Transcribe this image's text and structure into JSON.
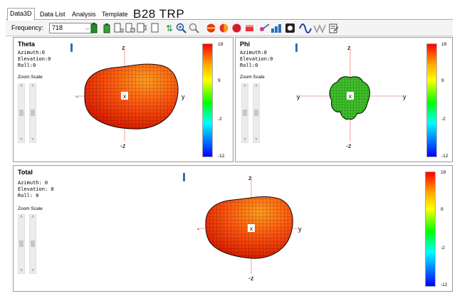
{
  "tabs": [
    {
      "label": "Data3D",
      "active": true
    },
    {
      "label": "Data List",
      "active": false
    },
    {
      "label": "Analysis",
      "active": false
    },
    {
      "label": "Template",
      "active": false
    }
  ],
  "overlay_title": "B28 TRP",
  "toolbar": {
    "frequency_label": "Frequency:",
    "frequency_value": "718",
    "icons": [
      "battery-green-icon",
      "battery-green-small-icon",
      "device-icon",
      "device-alt-icon",
      "device-right-icon",
      "refresh-icon",
      "zoom-in-icon",
      "zoom-out-icon",
      "color-ball-icon",
      "half-ball-icon",
      "red-ball-icon",
      "red-box-icon",
      "edit-icon",
      "chart-icon",
      "record-icon",
      "sine-wave-icon",
      "zigzag-icon",
      "export-icon"
    ]
  },
  "panels": {
    "theta": {
      "title": "Theta",
      "azimuth": "Azimuth:0",
      "elevation": "Elevation:0",
      "roll": "Roll:0",
      "zoom_label": "Zoom Scale",
      "axis": {
        "z": "z",
        "neg_z": "-z",
        "y": "y",
        "neg_y": "-",
        "x": "x"
      },
      "colorbar_ticks": [
        "19",
        "9",
        "-2",
        "-12"
      ]
    },
    "phi": {
      "title": "Phi",
      "azimuth": "Azimuth:0",
      "elevation": "Elevation:0",
      "roll": "Roll:0",
      "zoom_label": "Zoom Scale",
      "axis": {
        "z": "z",
        "neg_z": "-z",
        "y": "y",
        "neg_y": "-y",
        "x": "x"
      },
      "colorbar_ticks": [
        "19",
        "9",
        "-2",
        "-12"
      ]
    },
    "total": {
      "title": "Total",
      "azimuth": "Azimuth: 0",
      "elevation": "Elevation: 0",
      "roll": "Roll: 0",
      "zoom_label": "Zoom Scale",
      "axis": {
        "z": "z",
        "neg_z": "-z",
        "y": "y",
        "neg_y": "-",
        "x": "x"
      },
      "colorbar_ticks": [
        "19",
        "9",
        "-2",
        "-12"
      ]
    }
  },
  "colors": {
    "pattern_orange": "#ff5a10",
    "pattern_red": "#e62000",
    "pattern_green": "#3fbf2a",
    "marker_blue": "#2f6fb5"
  }
}
